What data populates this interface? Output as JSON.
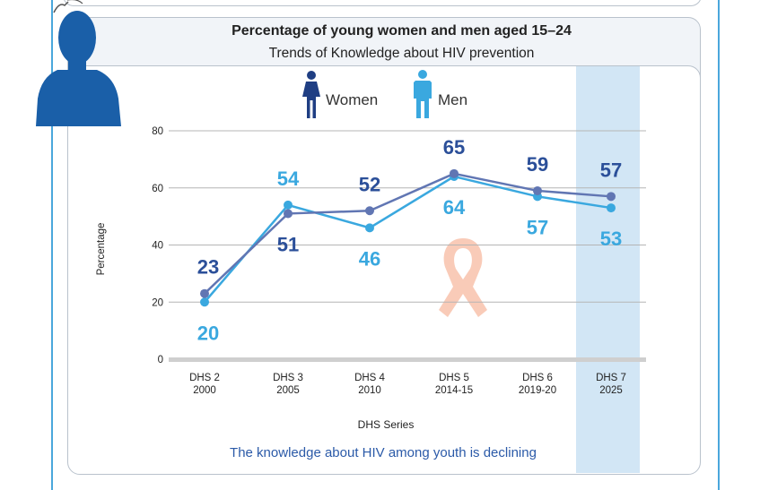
{
  "header": {
    "title": "Percentage of young women and men aged 15–24",
    "subtitle": "Trends of Knowledge about HIV prevention"
  },
  "legend": {
    "women_label": "Women",
    "men_label": "Men",
    "women_icon": "woman-icon",
    "men_icon": "man-icon"
  },
  "caption": "The knowledge about HIV among youth is declining",
  "colors": {
    "women": "#6176b3",
    "women_label": "#2b4f99",
    "men": "#3aa8df",
    "highlight": "#d2e6f5",
    "ribbon": "#f9cbb8",
    "silhouette": "#1a5fa8"
  },
  "chart_data": {
    "type": "line",
    "title": "Percentage of young women and men aged 15–24",
    "subtitle": "Trends of Knowledge about HIV prevention",
    "xlabel": "DHS Series",
    "ylabel": "Percentage",
    "ylim": [
      0,
      80
    ],
    "yticks": [
      0,
      20,
      40,
      60,
      80
    ],
    "grid": true,
    "categories": [
      [
        "DHS 2",
        "2000"
      ],
      [
        "DHS 3",
        "2005"
      ],
      [
        "DHS 4",
        "2010"
      ],
      [
        "DHS 5",
        "2014-15"
      ],
      [
        "DHS 6",
        "2019-20"
      ],
      [
        "DHS 7",
        "2025"
      ]
    ],
    "series": [
      {
        "name": "Women",
        "values": [
          23,
          51,
          52,
          65,
          59,
          57
        ]
      },
      {
        "name": "Men",
        "values": [
          20,
          54,
          46,
          64,
          57,
          53
        ]
      }
    ]
  }
}
